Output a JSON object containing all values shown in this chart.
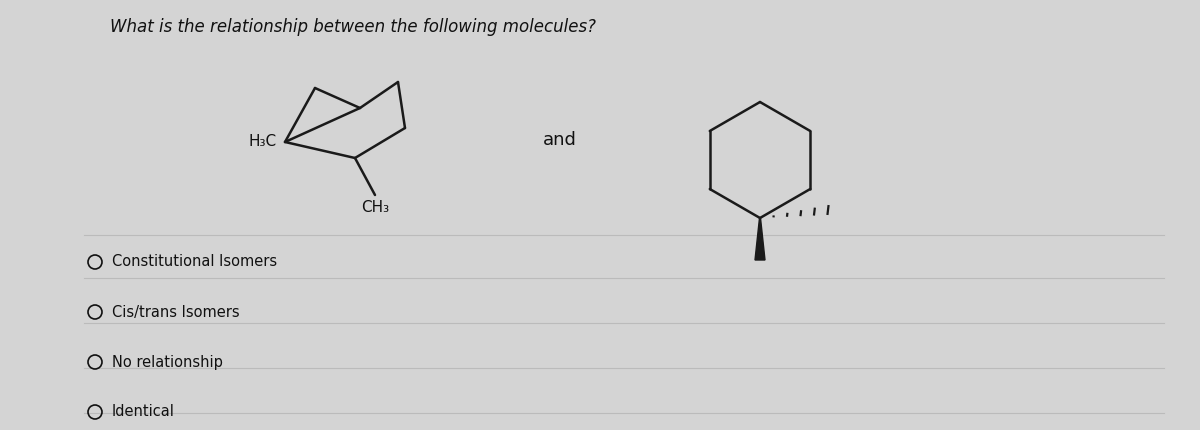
{
  "bg_color": "#d4d4d4",
  "question": "What is the relationship between the following molecules?",
  "question_fontsize": 12,
  "and_text": "and",
  "options": [
    "Constitutional Isomers",
    "Cis/trans Isomers",
    "No relationship",
    "Identical"
  ],
  "line_color": "#1a1a1a",
  "text_color": "#111111",
  "mol1_h3c": "H₃C",
  "mol1_ch3": "CH₃"
}
